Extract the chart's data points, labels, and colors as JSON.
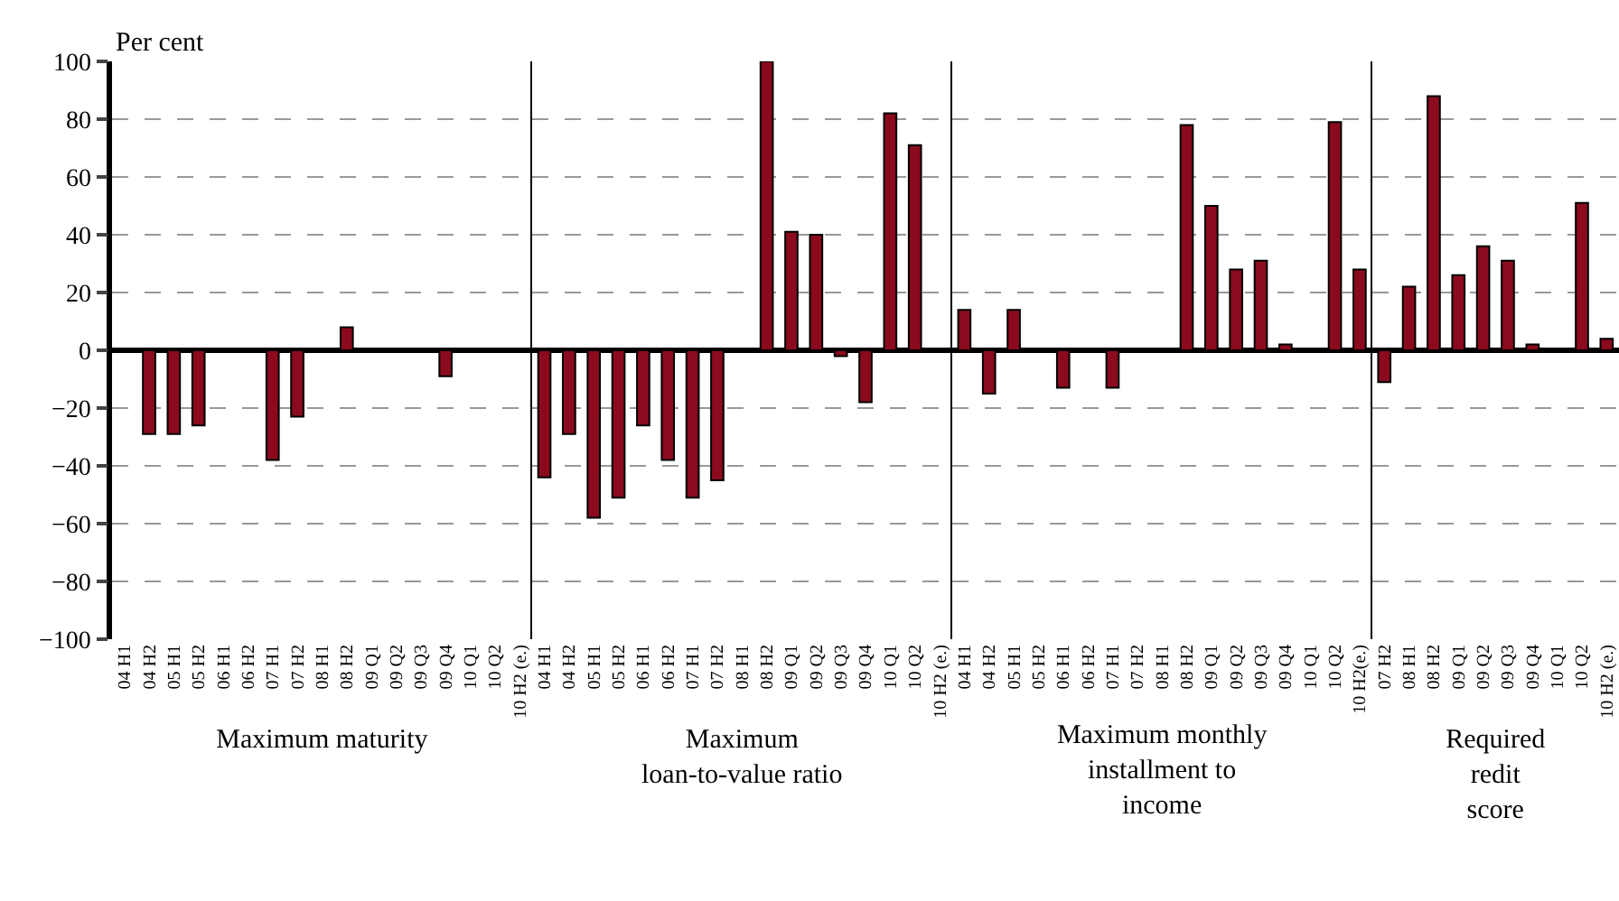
{
  "chart_data": [
    {
      "type": "bar",
      "ylabel": "Per cent",
      "xlabel": "Maximum maturity",
      "color": "#8b0a1e",
      "grid": "y",
      "ylim": [
        -100,
        100
      ],
      "yticks": [
        {
          "value": -100,
          "label": "−100"
        },
        {
          "value": -80,
          "label": "−80"
        },
        {
          "value": -60,
          "label": "−60"
        },
        {
          "value": -40,
          "label": "−40"
        },
        {
          "value": -20,
          "label": "−20"
        },
        0,
        20,
        40,
        60,
        80,
        100
      ],
      "categories": [
        "04 H1",
        "04 H2",
        "05 H1",
        "05 H2",
        "06 H1",
        "06 H2",
        "07 H1",
        "07 H2",
        "08 H1",
        "08 H2",
        "09 Q1",
        "09 Q2",
        "09 Q3",
        "09 Q4",
        "10 Q1",
        "10 Q2",
        "10 H2 (e.)"
      ],
      "values": [
        null,
        -29,
        -29,
        -26,
        null,
        null,
        -38,
        -23,
        null,
        8,
        null,
        null,
        null,
        -9,
        null,
        null,
        null
      ]
    },
    {
      "type": "bar",
      "xlabel": "Maximum\nloan-to-value ratio",
      "color": "#8b0a1e",
      "grid": "y",
      "tick_labels": "x",
      "ylim": [
        -100,
        100
      ],
      "categories": [
        "04 H1",
        "04 H2",
        "05 H1",
        "05 H2",
        "06 H1",
        "06 H2",
        "07 H1",
        "07 H2",
        "08 H1",
        "08 H2",
        "09 Q1",
        "09 Q2",
        "09 Q3",
        "09 Q4",
        "10 Q1",
        "10 Q2",
        "10 H2 (e.)"
      ],
      "values": [
        -44,
        -29,
        -58,
        -51,
        -26,
        -38,
        -51,
        -45,
        null,
        100,
        41,
        40,
        -2,
        -18,
        82,
        71,
        null
      ]
    },
    {
      "type": "bar",
      "xlabel": "Maximum monthly\ninstallment to\nincome",
      "color": "#8b0a1e",
      "grid": "y",
      "tick_labels": "x",
      "ylim": [
        -100,
        100
      ],
      "categories": [
        "04 H1",
        "04 H2",
        "05 H1",
        "05 H2",
        "06 H1",
        "06 H2",
        "07 H1",
        "07 H2",
        "08 H1",
        "08 H2",
        "09 Q1",
        "09 Q2",
        "09 Q3",
        "09 Q4",
        "10 Q1",
        "10 Q2",
        "10 H2(e.)"
      ],
      "values": [
        14,
        -15,
        14,
        null,
        -13,
        null,
        -13,
        null,
        null,
        78,
        50,
        28,
        31,
        2,
        null,
        79,
        28
      ]
    },
    {
      "type": "bar",
      "xlabel": "Required\nredit\nscore",
      "color": "#8b0a1e",
      "grid": "y",
      "tick_labels": "x",
      "ylim": [
        -100,
        100
      ],
      "categories": [
        "07 H2",
        "08 H1",
        "08 H2",
        "09 Q1",
        "09 Q2",
        "09 Q3",
        "09 Q4",
        "10 Q1",
        "10 Q2",
        "10 H2 (e.)"
      ],
      "values": [
        -11,
        22,
        88,
        26,
        36,
        31,
        2,
        null,
        51,
        4
      ]
    }
  ]
}
